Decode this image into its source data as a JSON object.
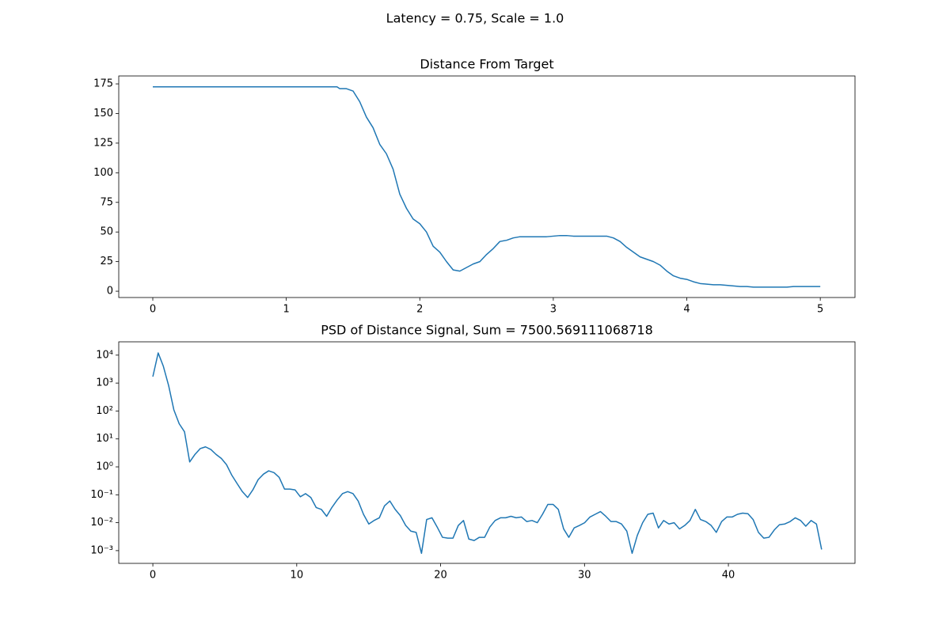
{
  "suptitle": "Latency = 0.75, Scale = 1.0",
  "chart_data": [
    {
      "type": "line",
      "title": "Distance From Target",
      "x": [
        0,
        1.38,
        1.4,
        1.45,
        1.5,
        1.55,
        1.6,
        1.65,
        1.7,
        1.75,
        1.8,
        1.85,
        1.9,
        1.95,
        2.0,
        2.05,
        2.1,
        2.15,
        2.2,
        2.25,
        2.3,
        2.35,
        2.4,
        2.45,
        2.5,
        2.55,
        2.6,
        2.65,
        2.7,
        2.75,
        2.8,
        2.85,
        2.9,
        2.95,
        3.0,
        3.05,
        3.1,
        3.15,
        3.2,
        3.25,
        3.3,
        3.35,
        3.4,
        3.45,
        3.5,
        3.55,
        3.6,
        3.65,
        3.7,
        3.75,
        3.8,
        3.85,
        3.9,
        3.95,
        4.0,
        4.05,
        4.1,
        4.15,
        4.2,
        4.25,
        4.3,
        4.35,
        4.4,
        4.45,
        4.5,
        4.55,
        4.6,
        4.65,
        4.7,
        4.75,
        4.8,
        4.85,
        4.9,
        4.95,
        5.0
      ],
      "series": [
        {
          "color": "#1f77b4",
          "values": [
            172.5,
            172.5,
            171,
            171,
            169,
            160,
            147,
            138,
            124,
            116,
            103,
            82,
            70,
            61,
            57,
            50,
            38,
            33,
            25,
            18,
            17,
            20,
            23,
            25,
            31,
            36,
            42,
            43,
            45,
            46,
            46,
            46,
            46,
            46,
            46.5,
            47,
            47,
            46.5,
            46.5,
            46.5,
            46.5,
            46.5,
            46.5,
            45,
            42,
            37,
            33,
            29,
            27,
            25,
            22,
            17,
            13,
            11,
            10,
            8,
            6.5,
            6,
            5.5,
            5.5,
            5,
            4.5,
            4,
            4,
            3.5,
            3.5,
            3.5,
            3.5,
            3.5,
            3.5,
            4,
            4,
            4,
            4,
            4
          ]
        }
      ],
      "xlim": [
        -0.255,
        5.26
      ],
      "xticks": [
        0,
        1,
        2,
        3,
        4,
        5
      ],
      "ylim": [
        -5.3,
        181.7
      ],
      "yticks": [
        0,
        25,
        50,
        75,
        100,
        125,
        150,
        175
      ]
    },
    {
      "type": "line",
      "title": "PSD of Distance Signal, Sum = 7500.569111068718",
      "x": [
        0,
        0.37,
        0.73,
        1.1,
        1.46,
        1.83,
        2.2,
        2.56,
        2.93,
        3.29,
        3.66,
        4.03,
        4.39,
        4.76,
        5.12,
        5.49,
        5.86,
        6.22,
        6.59,
        6.95,
        7.32,
        7.69,
        8.05,
        8.42,
        8.78,
        9.15,
        9.52,
        9.88,
        10.25,
        10.61,
        10.98,
        11.35,
        11.71,
        12.08,
        12.44,
        12.81,
        13.18,
        13.54,
        13.91,
        14.27,
        14.64,
        15.01,
        15.37,
        15.74,
        16.1,
        16.47,
        16.84,
        17.2,
        17.57,
        17.93,
        18.3,
        18.67,
        19.03,
        19.4,
        19.76,
        20.13,
        20.5,
        20.86,
        21.23,
        21.59,
        21.96,
        22.33,
        22.69,
        23.06,
        23.42,
        23.79,
        24.16,
        24.52,
        24.89,
        25.25,
        25.62,
        25.99,
        26.35,
        26.72,
        27.08,
        27.45,
        27.82,
        28.18,
        28.55,
        28.91,
        29.28,
        29.65,
        30.01,
        30.38,
        30.74,
        31.11,
        31.48,
        31.84,
        32.21,
        32.57,
        32.94,
        33.31,
        33.67,
        34.04,
        34.4,
        34.77,
        35.14,
        35.5,
        35.87,
        36.23,
        36.6,
        36.97,
        37.33,
        37.7,
        38.06,
        38.43,
        38.8,
        39.16,
        39.53,
        39.89,
        40.26,
        40.63,
        40.99,
        41.36,
        41.72,
        42.09,
        42.46,
        42.82,
        43.19,
        43.55,
        43.92,
        44.29,
        44.65,
        45.02,
        45.38,
        45.75,
        46.12,
        46.48
      ],
      "series": [
        {
          "color": "#1f77b4",
          "values": [
            1700,
            12000,
            4000,
            800,
            110,
            35,
            18,
            1.5,
            2.8,
            4.5,
            5.2,
            4.2,
            2.8,
            2,
            1.2,
            0.5,
            0.25,
            0.13,
            0.08,
            0.15,
            0.35,
            0.55,
            0.72,
            0.62,
            0.42,
            0.16,
            0.16,
            0.15,
            0.085,
            0.11,
            0.08,
            0.035,
            0.03,
            0.017,
            0.035,
            0.065,
            0.11,
            0.13,
            0.11,
            0.06,
            0.02,
            0.009,
            0.012,
            0.015,
            0.04,
            0.06,
            0.03,
            0.018,
            0.008,
            0.005,
            0.0045,
            0.0008,
            0.013,
            0.015,
            0.007,
            0.003,
            0.0028,
            0.0028,
            0.008,
            0.012,
            0.0026,
            0.0023,
            0.003,
            0.003,
            0.007,
            0.012,
            0.015,
            0.015,
            0.017,
            0.015,
            0.016,
            0.011,
            0.012,
            0.01,
            0.02,
            0.045,
            0.045,
            0.03,
            0.006,
            0.003,
            0.0065,
            0.008,
            0.01,
            0.016,
            0.02,
            0.025,
            0.017,
            0.011,
            0.011,
            0.009,
            0.005,
            0.0008,
            0.0035,
            0.01,
            0.02,
            0.022,
            0.0065,
            0.012,
            0.009,
            0.01,
            0.006,
            0.008,
            0.012,
            0.03,
            0.013,
            0.011,
            0.008,
            0.0045,
            0.011,
            0.016,
            0.016,
            0.02,
            0.022,
            0.021,
            0.013,
            0.0045,
            0.0028,
            0.003,
            0.0055,
            0.0085,
            0.009,
            0.011,
            0.015,
            0.012,
            0.0075,
            0.012,
            0.009,
            0.0011
          ]
        }
      ],
      "xlim": [
        -2.37,
        48.8
      ],
      "xticks": [
        0,
        10,
        20,
        30,
        40
      ],
      "yscale": "log",
      "ylim": [
        0.00035,
        30000
      ],
      "yticks": [
        {
          "value": 0.001,
          "label": "10⁻³"
        },
        {
          "value": 0.01,
          "label": "10⁻²"
        },
        {
          "value": 0.1,
          "label": "10⁻¹"
        },
        {
          "value": 1,
          "label": "10⁰"
        },
        {
          "value": 10,
          "label": "10¹"
        },
        {
          "value": 100,
          "label": "10²"
        },
        {
          "value": 1000,
          "label": "10³"
        },
        {
          "value": 10000,
          "label": "10⁴"
        }
      ]
    }
  ]
}
